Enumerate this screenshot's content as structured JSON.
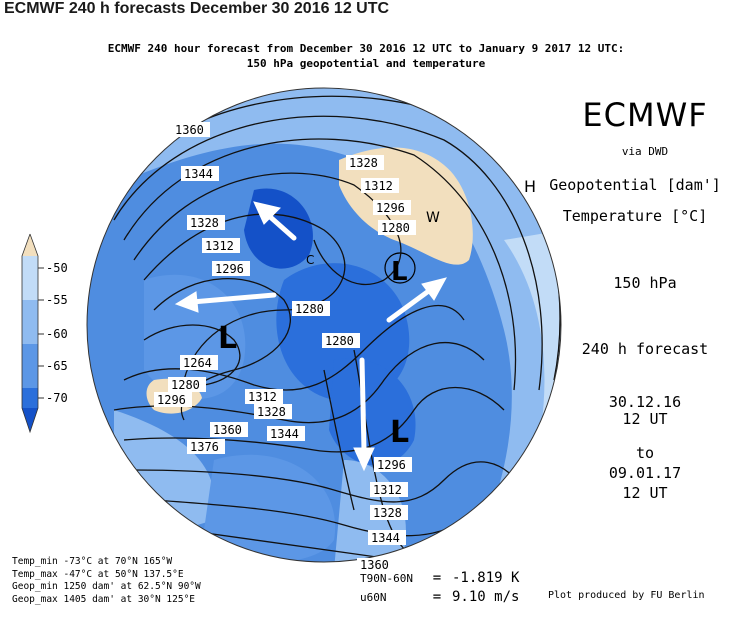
{
  "page_title": "ECMWF 240 h forecasts December 30 2016 12 UTC",
  "subtitle_line1": "ECMWF 240 hour forecast from December 30 2016 12 UTC to January 9 2017 12 UTC:",
  "subtitle_line2": "150 hPa geopotential and temperature",
  "brand": "ECMWF",
  "via": "via DWD",
  "param1": "Geopotential [dam']",
  "param2": "Temperature [°C]",
  "level": "150 hPa",
  "forecast": "240 h forecast",
  "valid": {
    "d1": "30.12.16",
    "d2": "12 UT",
    "d3": "to",
    "d4": "09.01.17",
    "d5": "12 UT"
  },
  "colorbar": {
    "labels": [
      "-50",
      "-55",
      "-60",
      "-65",
      "-70"
    ],
    "colors": [
      "#f2dfbe",
      "#c2dcf7",
      "#8fbbf0",
      "#5c97e6",
      "#2b6fdb",
      "#1451c8"
    ]
  },
  "geopotential_labels": [
    "1360",
    "1344",
    "1328",
    "1312",
    "1296",
    "1328",
    "1312",
    "1296",
    "1280",
    "1280",
    "1280",
    "1264",
    "1280",
    "1296",
    "1312",
    "1328",
    "1344",
    "1360",
    "1376",
    "1296",
    "1312",
    "1328",
    "1344",
    "1360"
  ],
  "pressure_centers": [
    "L",
    "L",
    "L",
    "H",
    "W",
    "C"
  ],
  "stats": [
    "Temp_min -73°C at 70°N 165°W",
    "Temp_max -47°C at 50°N 137.5°E",
    "Geop_min 1250 dam' at 62.5°N 90°W",
    "Geop_max 1405 dam' at 30°N 125°E"
  ],
  "indices": [
    {
      "label": "T90N-60N",
      "value": "-1.819 K"
    },
    {
      "label": "u60N",
      "value": "9.10 m/s"
    }
  ],
  "credit": "Plot produced by FU Berlin"
}
